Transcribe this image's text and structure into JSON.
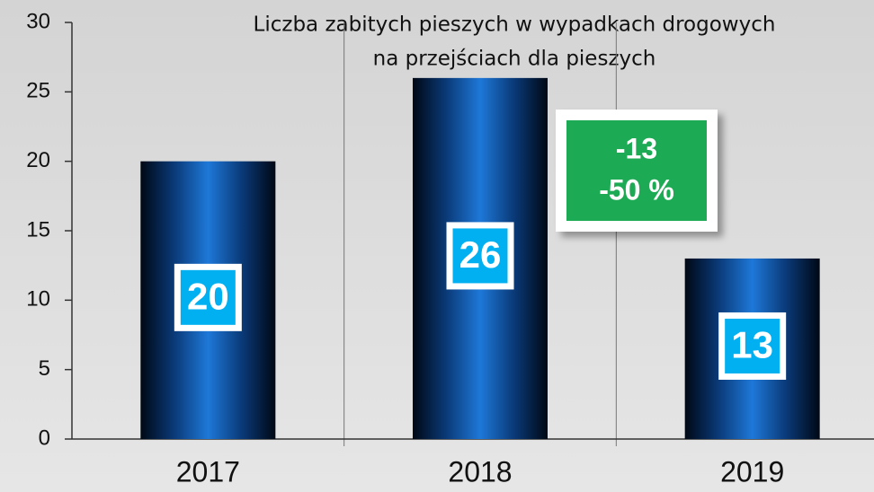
{
  "chart_data": {
    "type": "bar",
    "title": [
      "Liczba zabitych pieszych w wypadkach drogowych",
      "na przejściach dla pieszych"
    ],
    "categories": [
      "2017",
      "2018",
      "2019"
    ],
    "values": [
      20,
      26,
      13
    ],
    "color": "#1e78d8",
    "label_color": "#00b0f0",
    "ylim": [
      0,
      30
    ],
    "yticks": [
      0,
      5,
      10,
      15,
      20,
      25,
      30
    ],
    "grid": false,
    "annotations": [
      "-13",
      "-50 %"
    ],
    "annotation_color": "#1aaa55"
  }
}
